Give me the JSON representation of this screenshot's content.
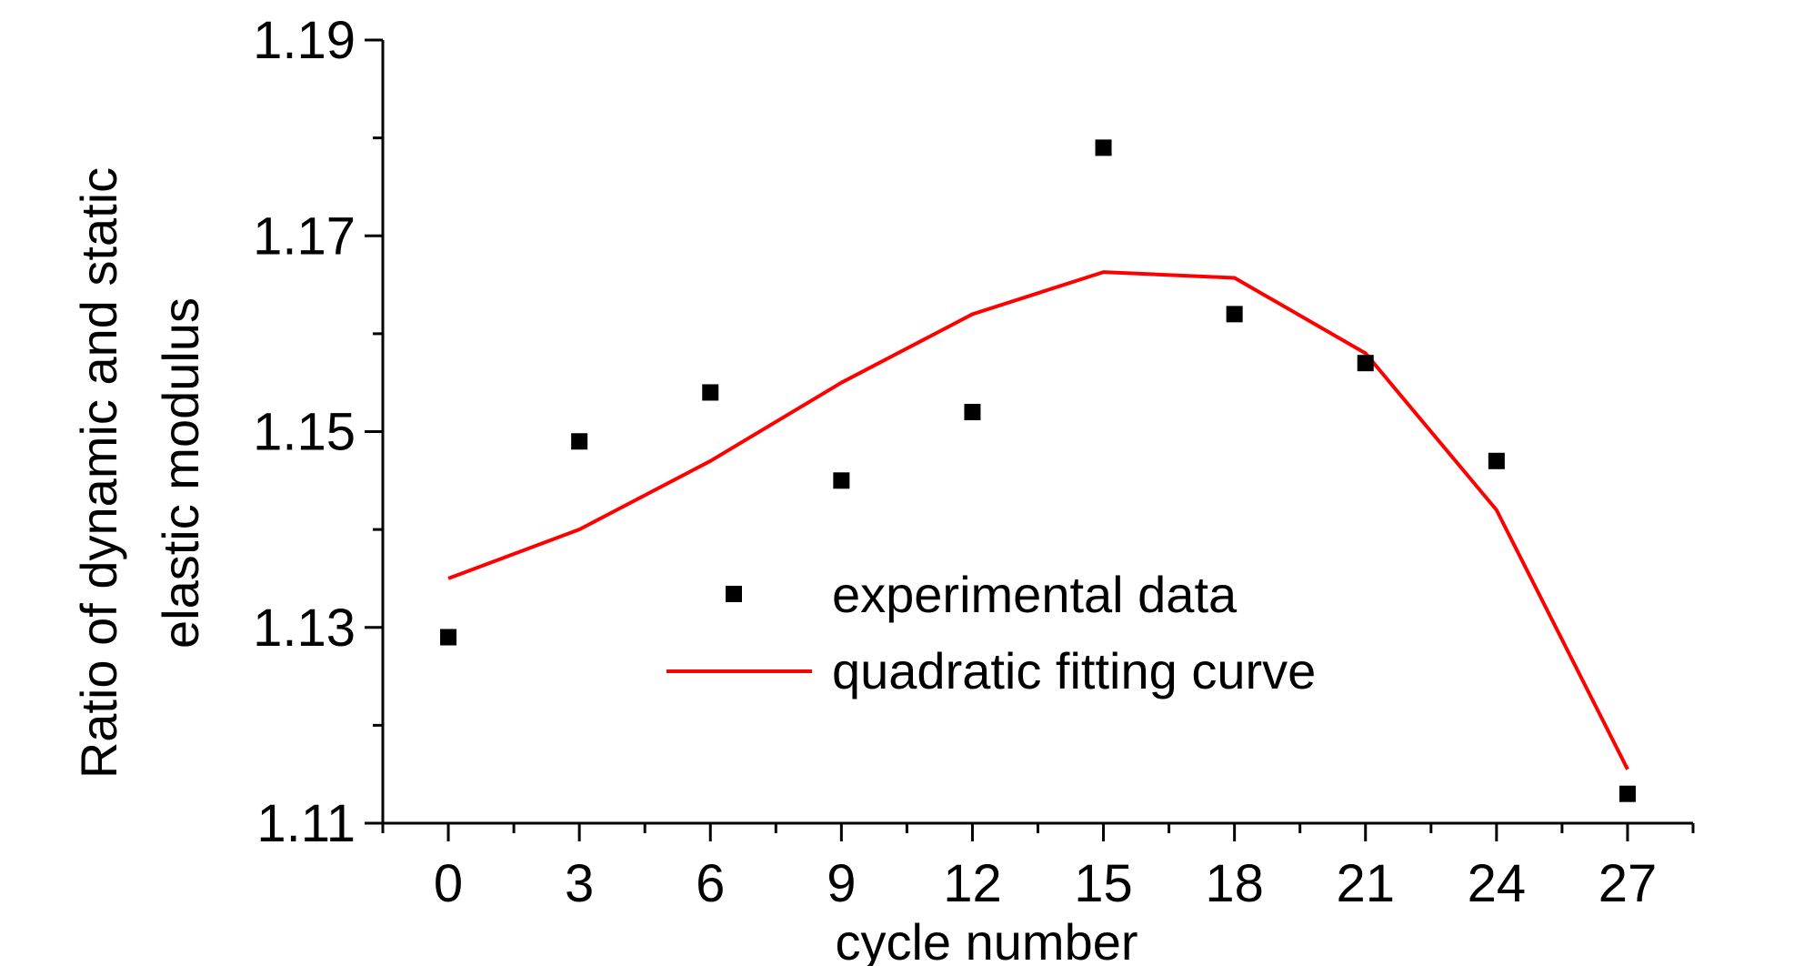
{
  "chart_data": {
    "type": "scatter",
    "title": "",
    "xlabel": "cycle number",
    "ylabel_line1": "Ratio of dynamic and static",
    "ylabel_line2": "elastic modulus",
    "xlim": [
      -1.5,
      28.5
    ],
    "ylim": [
      1.11,
      1.19
    ],
    "x_ticks": [
      0,
      3,
      6,
      9,
      12,
      15,
      18,
      21,
      24,
      27
    ],
    "x_tick_labels": [
      "0",
      "3",
      "6",
      "9",
      "12",
      "15",
      "18",
      "21",
      "24",
      "27"
    ],
    "y_ticks": [
      1.11,
      1.13,
      1.15,
      1.17,
      1.19
    ],
    "y_tick_labels": [
      "1.11",
      "1.13",
      "1.15",
      "1.17",
      "1.19"
    ],
    "x_minor_step": 1.5,
    "y_minor_step": 0.01,
    "grid": false,
    "legend_position": "center",
    "series": [
      {
        "name": "experimental data",
        "type": "scatter",
        "marker": "square",
        "color": "#000000",
        "x": [
          0,
          3,
          6,
          9,
          12,
          15,
          18,
          21,
          24,
          27
        ],
        "y": [
          1.129,
          1.149,
          1.154,
          1.145,
          1.152,
          1.179,
          1.162,
          1.157,
          1.147,
          1.113
        ]
      },
      {
        "name": "quadratic fitting curve",
        "type": "line",
        "color": "#ff0000",
        "x": [
          0,
          3,
          6,
          9,
          12,
          15,
          18,
          21,
          24,
          27
        ],
        "y": [
          1.135,
          1.14,
          1.147,
          1.155,
          1.162,
          1.1663,
          1.1657,
          1.158,
          1.142,
          1.1155
        ]
      }
    ]
  }
}
